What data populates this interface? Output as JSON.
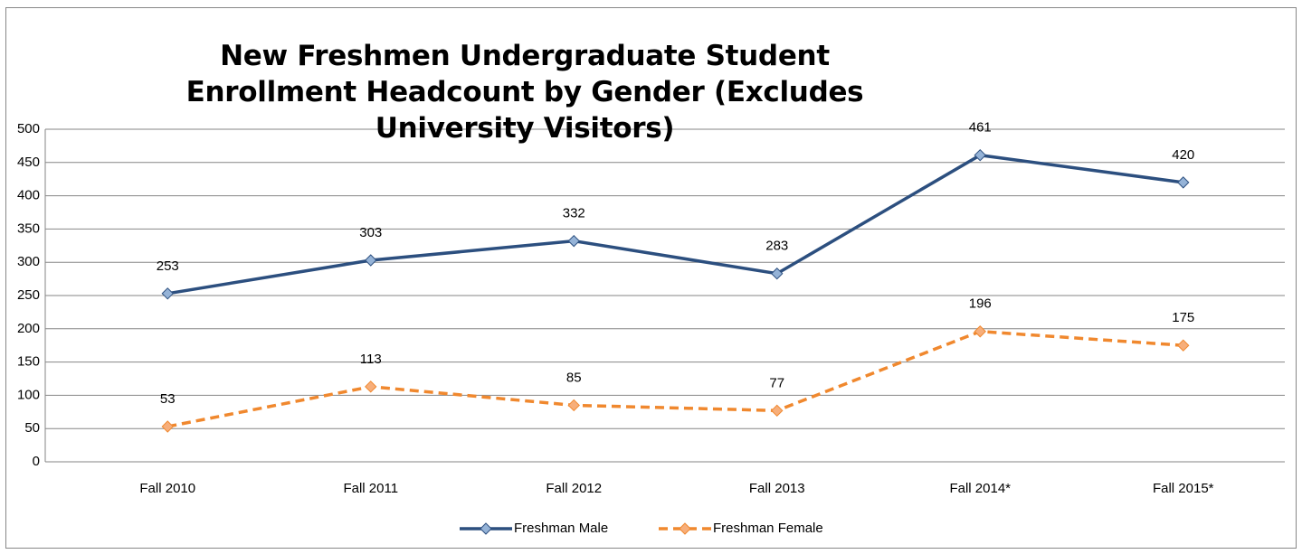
{
  "chart_data": {
    "type": "line",
    "title": "New Freshmen Undergraduate Student Enrollment Headcount by Gender (Excludes University Visitors)",
    "categories": [
      "Fall 2010",
      "Fall 2011",
      "Fall 2012",
      "Fall 2013",
      "Fall 2014*",
      "Fall 2015*"
    ],
    "series": [
      {
        "name": "Freshman Male",
        "color": "#2c4f7f",
        "marker_color": "#95b3d7",
        "dashed": false,
        "values": [
          253,
          303,
          332,
          283,
          461,
          420
        ]
      },
      {
        "name": "Freshman Female",
        "color": "#f0882e",
        "marker_color": "#f7ae7a",
        "dashed": true,
        "values": [
          53,
          113,
          85,
          77,
          196,
          175
        ]
      }
    ],
    "ylim": [
      0,
      500
    ],
    "yticks": [
      0,
      50,
      100,
      150,
      200,
      250,
      300,
      350,
      400,
      450,
      500
    ],
    "grid": true,
    "legend": "bottom"
  }
}
